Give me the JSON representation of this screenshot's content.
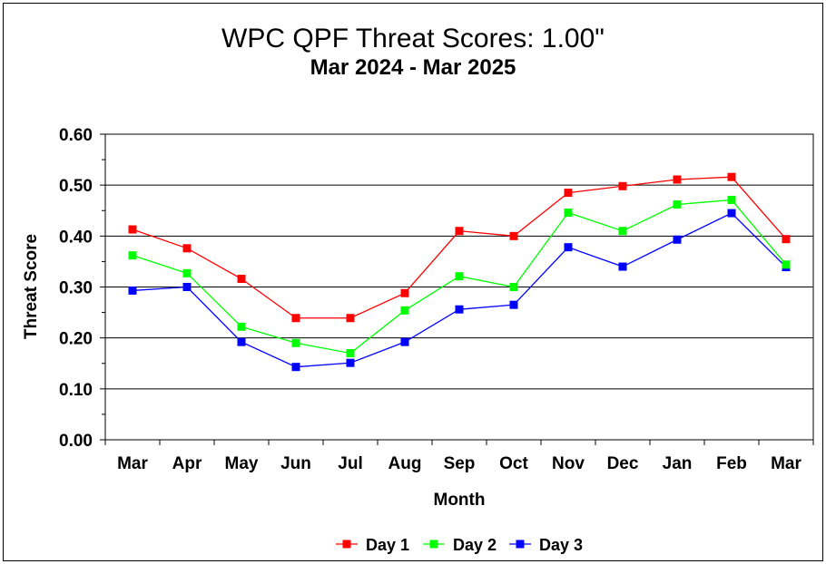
{
  "chart_data": {
    "type": "line",
    "title": "WPC QPF Threat Scores:  1.00\"",
    "subtitle": "Mar 2024 - Mar 2025",
    "xlabel": "Month",
    "ylabel": "Threat Score",
    "categories": [
      "Mar",
      "Apr",
      "May",
      "Jun",
      "Jul",
      "Aug",
      "Sep",
      "Oct",
      "Nov",
      "Dec",
      "Jan",
      "Feb",
      "Mar"
    ],
    "ylim": [
      0,
      0.6
    ],
    "yticks": [
      "0.00",
      "0.10",
      "0.20",
      "0.30",
      "0.40",
      "0.50",
      "0.60"
    ],
    "grid": "horizontal",
    "legend_position": "bottom",
    "series": [
      {
        "name": "Day 1",
        "color": "#ff0000",
        "marker": "square",
        "values": [
          0.413,
          0.376,
          0.316,
          0.239,
          0.239,
          0.288,
          0.41,
          0.4,
          0.485,
          0.498,
          0.511,
          0.516,
          0.394
        ]
      },
      {
        "name": "Day 2",
        "color": "#00ff00",
        "marker": "square",
        "values": [
          0.362,
          0.327,
          0.222,
          0.19,
          0.17,
          0.254,
          0.321,
          0.3,
          0.446,
          0.41,
          0.462,
          0.471,
          0.344
        ]
      },
      {
        "name": "Day 3",
        "color": "#0000ff",
        "marker": "square",
        "values": [
          0.293,
          0.3,
          0.192,
          0.143,
          0.151,
          0.192,
          0.256,
          0.265,
          0.378,
          0.34,
          0.393,
          0.445,
          0.339
        ]
      }
    ]
  }
}
